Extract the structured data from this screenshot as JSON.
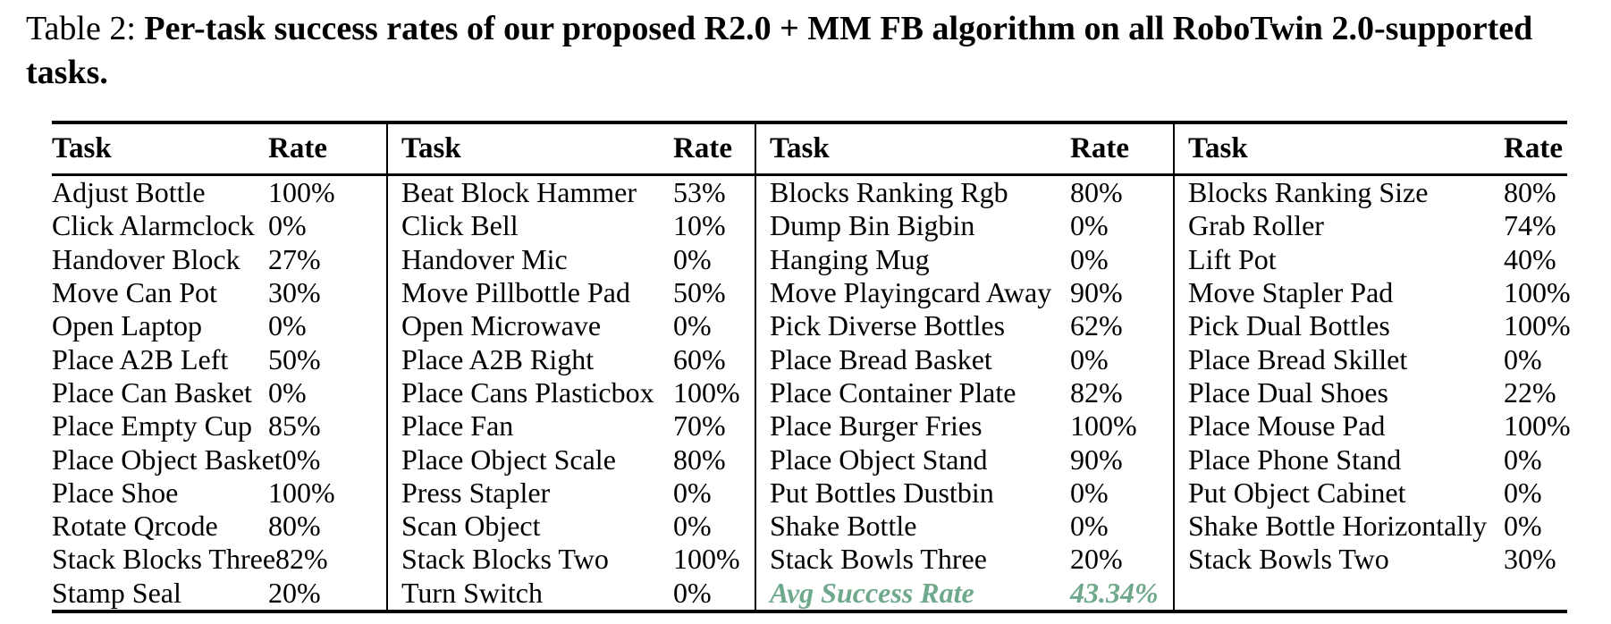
{
  "caption": {
    "label": "Table 2:",
    "body": "Per-task success rates of our proposed R2.0 + MM FB algorithm on all RoboTwin 2.0-supported tasks."
  },
  "table": {
    "accent_color": "#6fa98c",
    "header": {
      "task": "Task",
      "rate": "Rate"
    },
    "groups": [
      {
        "rows": [
          {
            "task": "Adjust Bottle",
            "rate": "100%"
          },
          {
            "task": "Click Alarmclock",
            "rate": "0%"
          },
          {
            "task": "Handover Block",
            "rate": "27%"
          },
          {
            "task": "Move Can Pot",
            "rate": "30%"
          },
          {
            "task": "Open Laptop",
            "rate": "0%"
          },
          {
            "task": "Place A2B Left",
            "rate": "50%"
          },
          {
            "task": "Place Can Basket",
            "rate": "0%"
          },
          {
            "task": "Place Empty Cup",
            "rate": "85%"
          },
          {
            "task": "Place Object Basket",
            "rate": "0%"
          },
          {
            "task": "Place Shoe",
            "rate": "100%"
          },
          {
            "task": "Rotate Qrcode",
            "rate": "80%"
          },
          {
            "task": "Stack Blocks Three",
            "rate": "82%"
          },
          {
            "task": "Stamp Seal",
            "rate": "20%"
          }
        ]
      },
      {
        "rows": [
          {
            "task": "Beat Block Hammer",
            "rate": "53%"
          },
          {
            "task": "Click Bell",
            "rate": "10%"
          },
          {
            "task": "Handover Mic",
            "rate": "0%"
          },
          {
            "task": "Move Pillbottle Pad",
            "rate": "50%"
          },
          {
            "task": "Open Microwave",
            "rate": "0%"
          },
          {
            "task": "Place A2B Right",
            "rate": "60%"
          },
          {
            "task": "Place Cans Plasticbox",
            "rate": "100%"
          },
          {
            "task": "Place Fan",
            "rate": "70%"
          },
          {
            "task": "Place Object Scale",
            "rate": "80%"
          },
          {
            "task": "Press Stapler",
            "rate": "0%"
          },
          {
            "task": "Scan Object",
            "rate": "0%"
          },
          {
            "task": "Stack Blocks Two",
            "rate": "100%"
          },
          {
            "task": "Turn Switch",
            "rate": "0%"
          }
        ]
      },
      {
        "rows": [
          {
            "task": "Blocks Ranking Rgb",
            "rate": "80%"
          },
          {
            "task": "Dump Bin Bigbin",
            "rate": "0%"
          },
          {
            "task": "Hanging Mug",
            "rate": "0%"
          },
          {
            "task": "Move Playingcard Away",
            "rate": "90%"
          },
          {
            "task": "Pick Diverse Bottles",
            "rate": "62%"
          },
          {
            "task": "Place Bread Basket",
            "rate": "0%"
          },
          {
            "task": "Place Container Plate",
            "rate": "82%"
          },
          {
            "task": "Place Burger Fries",
            "rate": "100%"
          },
          {
            "task": "Place Object Stand",
            "rate": "90%"
          },
          {
            "task": "Put Bottles Dustbin",
            "rate": "0%"
          },
          {
            "task": "Shake Bottle",
            "rate": "0%"
          },
          {
            "task": "Stack Bowls Three",
            "rate": "20%"
          },
          {
            "task": "Avg Success Rate",
            "rate": "43.34%",
            "accent": true
          }
        ]
      },
      {
        "rows": [
          {
            "task": "Blocks Ranking Size",
            "rate": "80%"
          },
          {
            "task": "Grab Roller",
            "rate": "74%"
          },
          {
            "task": "Lift Pot",
            "rate": "40%"
          },
          {
            "task": "Move Stapler Pad",
            "rate": "100%"
          },
          {
            "task": "Pick Dual Bottles",
            "rate": "100%"
          },
          {
            "task": "Place Bread Skillet",
            "rate": "0%"
          },
          {
            "task": "Place Dual Shoes",
            "rate": "22%"
          },
          {
            "task": "Place Mouse Pad",
            "rate": "100%"
          },
          {
            "task": "Place Phone Stand",
            "rate": "0%"
          },
          {
            "task": "Put Object Cabinet",
            "rate": "0%"
          },
          {
            "task": "Shake Bottle Horizontally",
            "rate": "0%"
          },
          {
            "task": "Stack Bowls Two",
            "rate": "30%"
          }
        ]
      }
    ]
  }
}
